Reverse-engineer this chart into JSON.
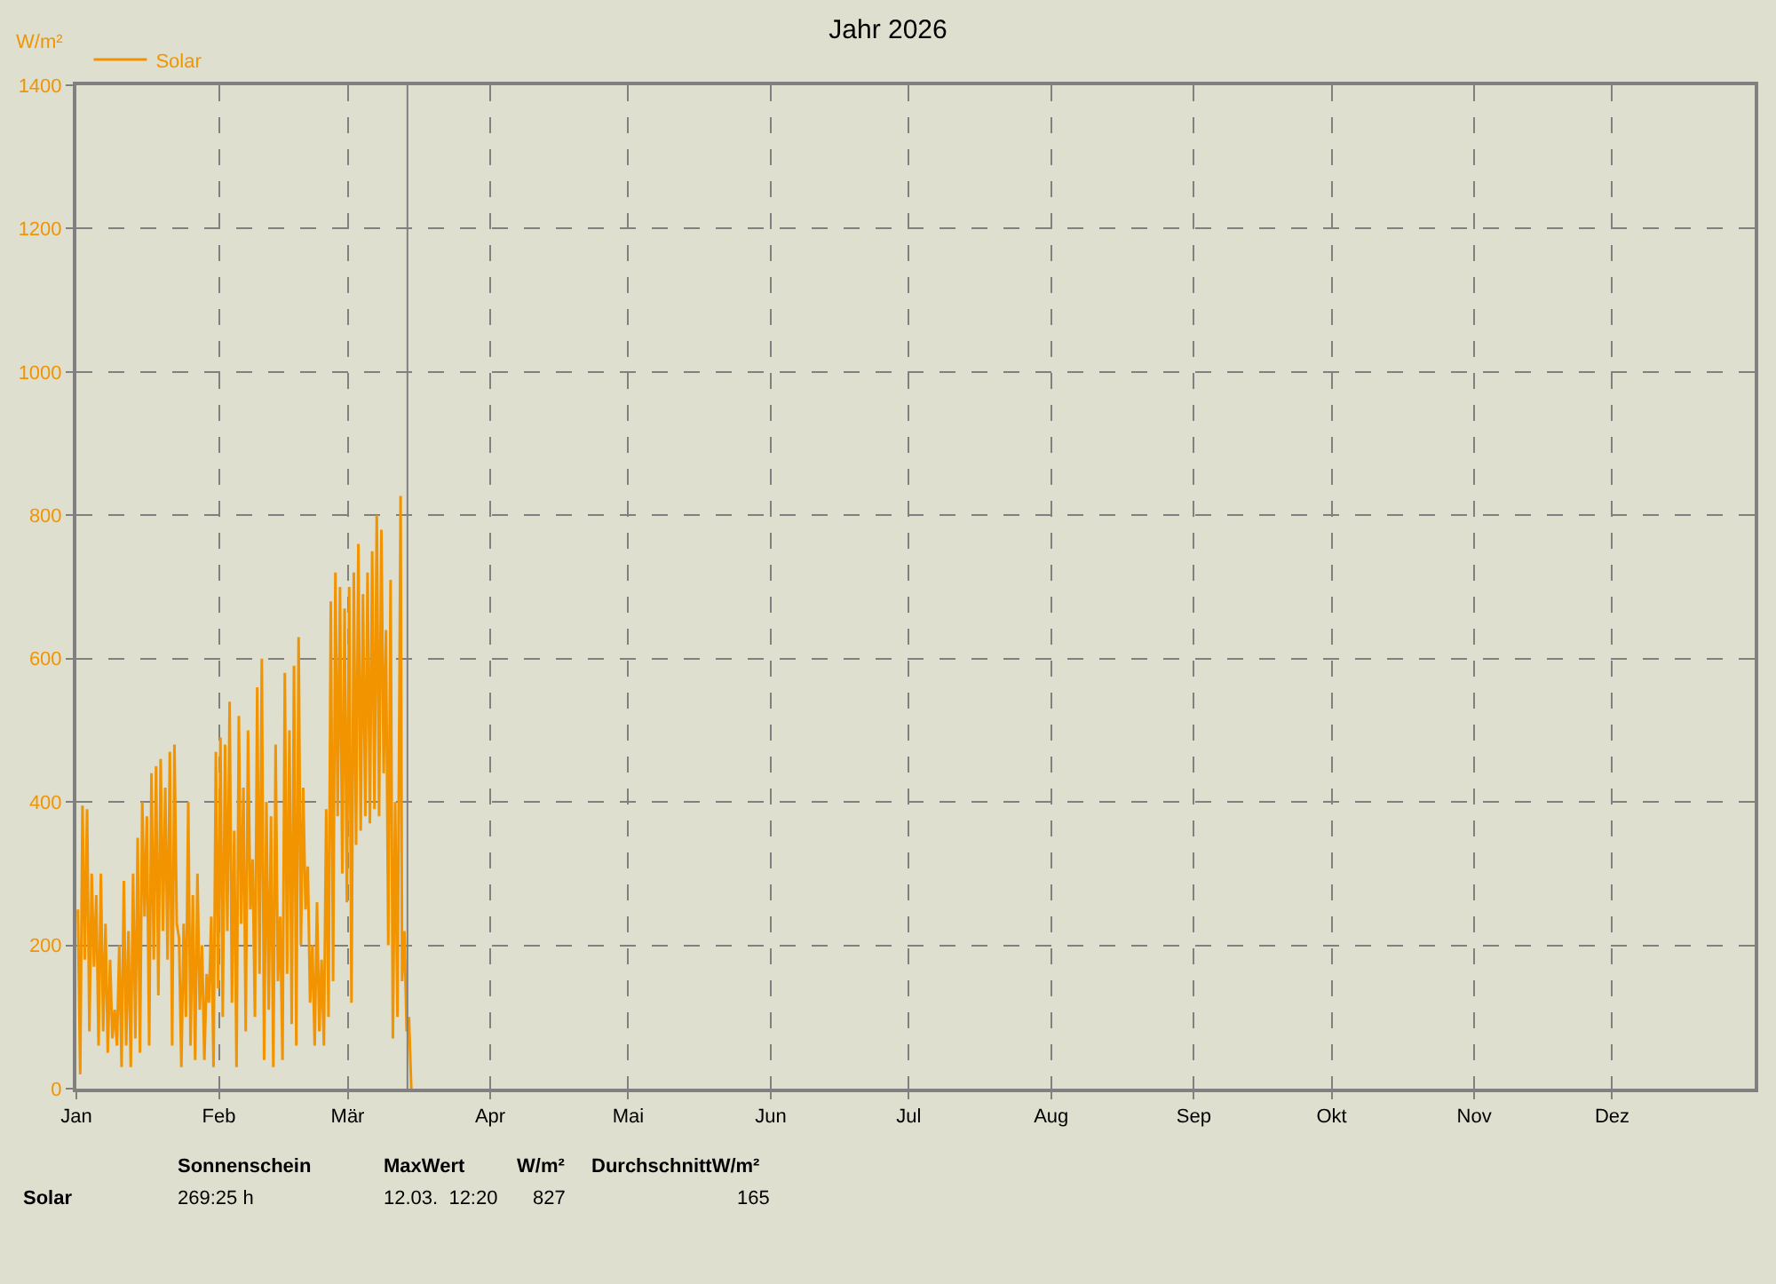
{
  "chart_data": {
    "type": "line",
    "title": "Jahr 2026",
    "ylabel": "W/m²",
    "legend": "top left",
    "grid": true,
    "line_style": "solid",
    "marker": "none",
    "xlim": [
      "2026-01-01",
      "2027-01-01"
    ],
    "xticks": [
      {
        "value": "2026-01-01",
        "label": "Jan"
      },
      {
        "value": "2026-02-01",
        "label": "Feb"
      },
      {
        "value": "2026-03-01",
        "label": "Mär"
      },
      {
        "value": "2026-04-01",
        "label": "Apr"
      },
      {
        "value": "2026-05-01",
        "label": "Mai"
      },
      {
        "value": "2026-06-01",
        "label": "Jun"
      },
      {
        "value": "2026-07-01",
        "label": "Jul"
      },
      {
        "value": "2026-08-01",
        "label": "Aug"
      },
      {
        "value": "2026-09-01",
        "label": "Sep"
      },
      {
        "value": "2026-10-01",
        "label": "Okt"
      },
      {
        "value": "2026-11-01",
        "label": "Nov"
      },
      {
        "value": "2026-12-01",
        "label": "Dez"
      }
    ],
    "ylim": [
      0,
      1400
    ],
    "yticks": [
      0,
      200,
      400,
      600,
      800,
      1000,
      1200,
      1400
    ],
    "ref_lines": [
      {
        "axis": "x",
        "value": "2026-03-14",
        "label": null,
        "color": "#808080"
      }
    ],
    "annotations": [
      "Solar",
      "Sonnenschein",
      "269:25 h",
      "MaxWert",
      "W/m²",
      "12.03.  12:20",
      "827",
      "DurchschnittW/m²",
      "165"
    ],
    "x": [
      "2026-01-01T08:00",
      "2026-01-01T20:00",
      "2026-01-02T08:00",
      "2026-01-02T20:00",
      "2026-01-03T08:00",
      "2026-01-03T20:00",
      "2026-01-04T08:00",
      "2026-01-04T20:00",
      "2026-01-05T08:00",
      "2026-01-05T20:00",
      "2026-01-06T08:00",
      "2026-01-06T20:00",
      "2026-01-07T08:00",
      "2026-01-07T20:00",
      "2026-01-08T08:00",
      "2026-01-08T20:00",
      "2026-01-09T08:00",
      "2026-01-09T20:00",
      "2026-01-10T08:00",
      "2026-01-10T20:00",
      "2026-01-11T08:00",
      "2026-01-11T20:00",
      "2026-01-12T08:00",
      "2026-01-12T20:00",
      "2026-01-13T08:00",
      "2026-01-13T20:00",
      "2026-01-14T08:00",
      "2026-01-14T20:00",
      "2026-01-15T08:00",
      "2026-01-15T20:00",
      "2026-01-16T08:00",
      "2026-01-16T20:00",
      "2026-01-17T08:00",
      "2026-01-17T20:00",
      "2026-01-18T08:00",
      "2026-01-18T20:00",
      "2026-01-19T08:00",
      "2026-01-19T20:00",
      "2026-01-20T08:00",
      "2026-01-20T20:00",
      "2026-01-21T08:00",
      "2026-01-21T20:00",
      "2026-01-22T08:00",
      "2026-01-22T20:00",
      "2026-01-23T08:00",
      "2026-01-23T20:00",
      "2026-01-24T08:00",
      "2026-01-24T20:00",
      "2026-01-25T08:00",
      "2026-01-25T20:00",
      "2026-01-26T08:00",
      "2026-01-26T20:00",
      "2026-01-27T08:00",
      "2026-01-27T20:00",
      "2026-01-28T08:00",
      "2026-01-28T20:00",
      "2026-01-29T08:00",
      "2026-01-29T20:00",
      "2026-01-30T08:00",
      "2026-01-30T20:00",
      "2026-01-31T08:00",
      "2026-01-31T20:00",
      "2026-02-01T08:00",
      "2026-02-01T20:00",
      "2026-02-02T08:00",
      "2026-02-02T20:00",
      "2026-02-03T08:00",
      "2026-02-03T20:00",
      "2026-02-04T08:00",
      "2026-02-04T20:00",
      "2026-02-05T08:00",
      "2026-02-05T20:00",
      "2026-02-06T08:00",
      "2026-02-06T20:00",
      "2026-02-07T08:00",
      "2026-02-07T20:00",
      "2026-02-08T08:00",
      "2026-02-08T20:00",
      "2026-02-09T08:00",
      "2026-02-09T20:00",
      "2026-02-10T08:00",
      "2026-02-10T20:00",
      "2026-02-11T08:00",
      "2026-02-11T20:00",
      "2026-02-12T08:00",
      "2026-02-12T20:00",
      "2026-02-13T08:00",
      "2026-02-13T20:00",
      "2026-02-14T08:00",
      "2026-02-14T20:00",
      "2026-02-15T08:00",
      "2026-02-15T20:00",
      "2026-02-16T08:00",
      "2026-02-16T20:00",
      "2026-02-17T08:00",
      "2026-02-17T20:00",
      "2026-02-18T08:00",
      "2026-02-18T20:00",
      "2026-02-19T08:00",
      "2026-02-19T20:00",
      "2026-02-20T08:00",
      "2026-02-20T20:00",
      "2026-02-21T08:00",
      "2026-02-21T20:00",
      "2026-02-22T08:00",
      "2026-02-22T20:00",
      "2026-02-23T08:00",
      "2026-02-23T20:00",
      "2026-02-24T08:00",
      "2026-02-24T20:00",
      "2026-02-25T08:00",
      "2026-02-25T20:00",
      "2026-02-26T08:00",
      "2026-02-26T20:00",
      "2026-02-27T08:00",
      "2026-02-27T20:00",
      "2026-02-28T08:00",
      "2026-02-28T20:00",
      "2026-03-01T08:00",
      "2026-03-01T20:00",
      "2026-03-02T08:00",
      "2026-03-02T20:00",
      "2026-03-03T08:00",
      "2026-03-03T20:00",
      "2026-03-04T08:00",
      "2026-03-04T20:00",
      "2026-03-05T08:00",
      "2026-03-05T20:00",
      "2026-03-06T08:00",
      "2026-03-06T20:00",
      "2026-03-07T08:00",
      "2026-03-07T20:00",
      "2026-03-08T08:00",
      "2026-03-08T20:00",
      "2026-03-09T08:00",
      "2026-03-09T20:00",
      "2026-03-10T08:00",
      "2026-03-10T20:00",
      "2026-03-11T08:00",
      "2026-03-11T20:00",
      "2026-03-12T12:20",
      "2026-03-12T20:00",
      "2026-03-13T08:00",
      "2026-03-13T20:00",
      "2026-03-14T08:00",
      "2026-03-14T20:00"
    ],
    "series": [
      {
        "name": "Solar",
        "color": "#f29400",
        "values": [
          250,
          20,
          395,
          180,
          390,
          80,
          300,
          170,
          270,
          60,
          300,
          80,
          230,
          50,
          180,
          70,
          110,
          60,
          200,
          30,
          290,
          60,
          220,
          30,
          300,
          70,
          350,
          50,
          400,
          240,
          380,
          60,
          440,
          180,
          450,
          130,
          460,
          220,
          420,
          180,
          470,
          60,
          480,
          230,
          210,
          30,
          230,
          100,
          400,
          60,
          270,
          40,
          300,
          110,
          200,
          40,
          160,
          120,
          240,
          30,
          470,
          140,
          490,
          100,
          480,
          220,
          540,
          120,
          360,
          30,
          520,
          230,
          420,
          80,
          500,
          250,
          320,
          100,
          560,
          160,
          600,
          40,
          400,
          110,
          380,
          30,
          480,
          150,
          240,
          40,
          580,
          160,
          500,
          90,
          590,
          60,
          630,
          200,
          420,
          250,
          310,
          120,
          200,
          60,
          260,
          80,
          180,
          60,
          390,
          100,
          680,
          150,
          720,
          380,
          700,
          300,
          670,
          260,
          700,
          120,
          720,
          340,
          760,
          360,
          690,
          380,
          720,
          370,
          750,
          390,
          800,
          380,
          780,
          440,
          640,
          200,
          710,
          70,
          400,
          100,
          827,
          150,
          220,
          80,
          100,
          0
        ]
      }
    ]
  }
}
